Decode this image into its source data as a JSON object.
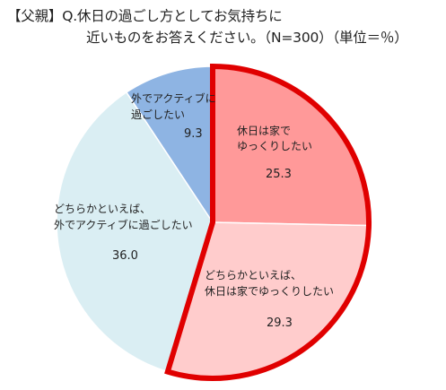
{
  "title": {
    "line1": "【父親】Q.休日の過ごし方としてお気持ちに",
    "line2": "近いものをお答えください。（N=300）（単位＝％）"
  },
  "chart_data": {
    "type": "pie",
    "title": "【父親】Q.休日の過ごし方としてお気持ちに近いものをお答えください。（N=300）（単位＝％）",
    "slices": [
      {
        "label_lines": [
          "休日は家で",
          "ゆっくりしたい"
        ],
        "value": 25.3,
        "color": "#ff9999",
        "highlight": true
      },
      {
        "label_lines": [
          "どちらかといえば、",
          "休日は家でゆっくりしたい"
        ],
        "value": 29.3,
        "color": "#ffcccc",
        "highlight": true
      },
      {
        "label_lines": [
          "どちらかといえば、",
          "外でアクティブに過ごしたい"
        ],
        "value": 36.0,
        "color": "#daeef3",
        "highlight": false
      },
      {
        "label_lines": [
          "外でアクティブに",
          "過ごしたい"
        ],
        "value": 9.3,
        "color": "#8eb4e3",
        "highlight": false
      }
    ],
    "highlight_color": "#e00000"
  }
}
